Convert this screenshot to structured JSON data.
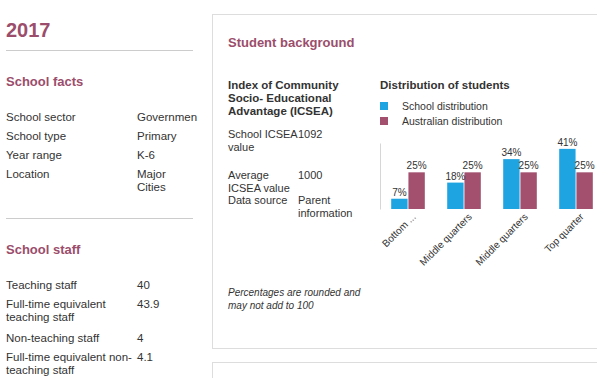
{
  "page": {
    "year": "2017",
    "school_facts": {
      "title": "School facts",
      "rows": [
        [
          "School sector",
          "Governmen"
        ],
        [
          "School type",
          "Primary"
        ],
        [
          "Year range",
          "K-6"
        ],
        [
          "Location",
          "Major Cities"
        ]
      ]
    },
    "school_staff": {
      "title": "School staff",
      "rows": [
        [
          "Teaching staff",
          40
        ],
        [
          "Full-time equivalent teaching staff",
          43.9
        ],
        [
          "Non-teaching staff",
          4
        ],
        [
          "Full-time equivalent non-teaching staff",
          4.1
        ]
      ]
    },
    "student_background": {
      "title": "Student background",
      "icsea_heading": "Index of Community Socio- Educational Advantage (ICSEA)",
      "rows": [
        [
          "School ICSEA value",
          1092
        ],
        [
          "Average ICSEA value",
          1000
        ],
        [
          "Data source",
          "Parent information"
        ]
      ],
      "note": "Percentages are rounded and may not add to 100"
    }
  },
  "chart_data": {
    "type": "bar",
    "title": "Distribution of students",
    "categories": [
      "Bottom ...",
      "Middle quarters",
      "Middle quarters",
      "Top quarter"
    ],
    "series": [
      {
        "name": "School distribution",
        "color": "#1ea4e0",
        "values": [
          7,
          18,
          34,
          41
        ],
        "value_labels": [
          "7%",
          "18%",
          "34%",
          "41%"
        ]
      },
      {
        "name": "Australian distribution",
        "color": "#a2506e",
        "values": [
          25,
          25,
          25,
          25
        ],
        "value_labels": [
          "25%",
          "25%",
          "25%",
          "25%"
        ]
      }
    ],
    "ylim": [
      0,
      45
    ],
    "tick_labels": false,
    "data_labels": true,
    "legend": "top-left"
  }
}
